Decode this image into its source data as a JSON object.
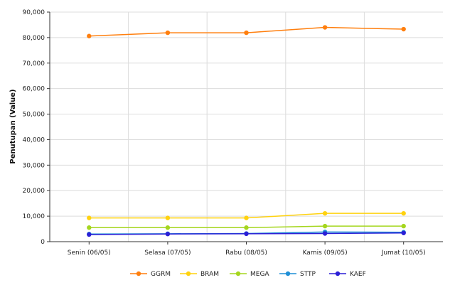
{
  "chart_data": {
    "type": "line",
    "ylabel": "Penutupan (Value)",
    "xlabel": "",
    "categories": [
      "Senin (06/05)",
      "Selasa (07/05)",
      "Rabu (08/05)",
      "Kamis (09/05)",
      "Jumat (10/05)"
    ],
    "ylim": [
      0,
      90000
    ],
    "yticks": [
      0,
      10000,
      20000,
      30000,
      40000,
      50000,
      60000,
      70000,
      80000,
      90000
    ],
    "ytick_labels": [
      "0",
      "10,000",
      "20,000",
      "30,000",
      "40,000",
      "50,000",
      "60,000",
      "70,000",
      "80,000",
      "90,000"
    ],
    "grid": true,
    "legend_position": "bottom",
    "series": [
      {
        "name": "GGRM",
        "color": "#ff7f0e",
        "values": [
          80600,
          81900,
          81900,
          84000,
          83300
        ]
      },
      {
        "name": "BRAM",
        "color": "#ffd20f",
        "values": [
          9300,
          9300,
          9300,
          11100,
          11100
        ]
      },
      {
        "name": "MEGA",
        "color": "#a5d61e",
        "values": [
          5500,
          5500,
          5500,
          6100,
          6100
        ]
      },
      {
        "name": "STTP",
        "color": "#1f8fd6",
        "values": [
          3000,
          3100,
          3200,
          3800,
          3700
        ]
      },
      {
        "name": "KAEF",
        "color": "#2b1fd6",
        "values": [
          2800,
          3000,
          3100,
          3200,
          3400
        ]
      }
    ]
  }
}
